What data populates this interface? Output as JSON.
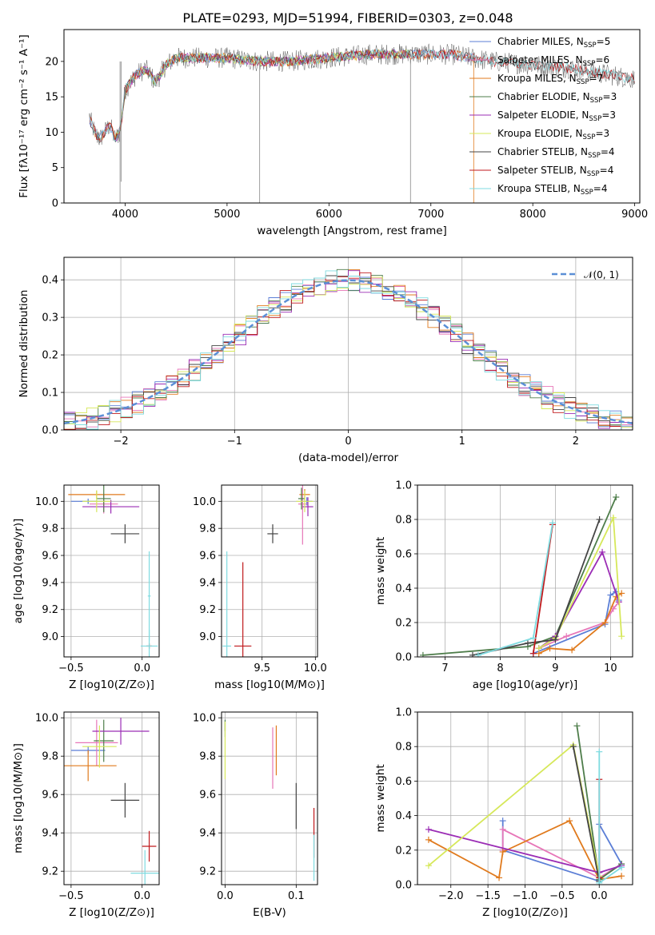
{
  "colors": {
    "series": [
      "#5b7ed6",
      "#e776b8",
      "#e07a1d",
      "#4e7d4a",
      "#9b2db5",
      "#d6e85a",
      "#444444",
      "#c0191c",
      "#7fdbe0"
    ],
    "gaussian": "#5b8fd6"
  },
  "chart_data": [
    {
      "id": "spectrum",
      "type": "line",
      "title": "PLATE=0293, MJD=51994, FIBERID=0303, z=0.048",
      "xlabel": "wavelength [Angstrom, rest frame]",
      "ylabel": "Flux [fλ10⁻¹⁷ erg cm⁻² s⁻¹ A⁻¹]",
      "xlim": [
        3400,
        9050
      ],
      "ylim": [
        0,
        24.5
      ],
      "xticks": [
        4000,
        5000,
        6000,
        7000,
        8000,
        9000
      ],
      "yticks": [
        0,
        5,
        10,
        15,
        20
      ],
      "grid": false,
      "legend_position": "right",
      "legend": [
        "Chabrier MILES, N_SSP=5",
        "Salpeter MILES, N_SSP=6",
        "Kroupa MILES, N_SSP=7",
        "Chabrier ELODIE, N_SSP=3",
        "Salpeter ELODIE, N_SSP=3",
        "Kroupa ELODIE, N_SSP=3",
        "Chabrier STELIB, N_SSP=4",
        "Salpeter STELIB, N_SSP=4",
        "Kroupa STELIB, N_SSP=4"
      ],
      "observed_envelope": {
        "x": [
          3650,
          3700,
          3750,
          3800,
          3850,
          3900,
          3950,
          4000,
          4100,
          4200,
          4300,
          4400,
          4500,
          4700,
          5000,
          5300,
          5600,
          6000,
          6400,
          6800,
          7200,
          7600,
          8000,
          8400,
          8800,
          9000
        ],
        "y": [
          12,
          10,
          9,
          10,
          11,
          9,
          10,
          16,
          18,
          19,
          17,
          19.5,
          20.5,
          20.5,
          20.5,
          20,
          20,
          20.5,
          21,
          21,
          21,
          20,
          19.5,
          19,
          18,
          17.5
        ]
      },
      "series_ranges": [
        {
          "name": "Chabrier MILES",
          "x": [
            3650,
            7420
          ]
        },
        {
          "name": "Salpeter MILES",
          "x": [
            3650,
            7420
          ]
        },
        {
          "name": "Kroupa MILES",
          "x": [
            3650,
            7420
          ]
        },
        {
          "name": "Chabrier ELODIE",
          "x": [
            3900,
            6800
          ]
        },
        {
          "name": "Salpeter ELODIE",
          "x": [
            3900,
            6800
          ]
        },
        {
          "name": "Kroupa ELODIE",
          "x": [
            3900,
            6800
          ]
        },
        {
          "name": "Chabrier STELIB",
          "x": [
            3650,
            9000
          ]
        },
        {
          "name": "Salpeter STELIB",
          "x": [
            3650,
            9000
          ]
        },
        {
          "name": "Kroupa STELIB",
          "x": [
            3650,
            9000
          ]
        }
      ]
    },
    {
      "id": "residuals",
      "type": "line",
      "xlabel": "(data-model)/error",
      "ylabel": "Normed distribution",
      "xlim": [
        -2.5,
        2.5
      ],
      "ylim": [
        0,
        0.46
      ],
      "xticks": [
        -2,
        -1,
        0,
        1,
        2
      ],
      "yticks": [
        0.0,
        0.1,
        0.2,
        0.3,
        0.4
      ],
      "grid": true,
      "legend": [
        "𝒩(0, 1)"
      ],
      "legend_position": "top-right",
      "bin_width": 0.1
    },
    {
      "id": "age-vs-Z",
      "type": "scatter",
      "xlabel": "Z [log10(Z/Z⊙)]",
      "ylabel": "age  [log10(age/yr)]",
      "xlim": [
        -0.55,
        0.12
      ],
      "ylim": [
        8.85,
        10.12
      ],
      "xticks": [
        -0.5,
        0.0
      ],
      "yticks": [
        9.0,
        9.2,
        9.4,
        9.6,
        9.8,
        10.0
      ],
      "grid": true,
      "points": [
        {
          "s": 0,
          "x": -0.38,
          "y": 10.0,
          "xerr": 0.12,
          "yerr": 0.02
        },
        {
          "s": 1,
          "x": -0.27,
          "y": 9.98,
          "xerr": 0.1,
          "yerr": 0.07
        },
        {
          "s": 2,
          "x": -0.32,
          "y": 10.05,
          "xerr": 0.2,
          "yerr": 0.03
        },
        {
          "s": 3,
          "x": -0.27,
          "y": 10.02,
          "xerr": 0.05,
          "yerr": 0.1
        },
        {
          "s": 4,
          "x": -0.22,
          "y": 9.96,
          "xerr": 0.2,
          "yerr": 0.05
        },
        {
          "s": 5,
          "x": -0.32,
          "y": 10.0,
          "xerr": 0.1,
          "yerr": 0.08
        },
        {
          "s": 6,
          "x": -0.12,
          "y": 9.76,
          "xerr": 0.1,
          "yerr": 0.07
        },
        {
          "s": 7,
          "x": 0.05,
          "y": 8.93,
          "xerr": 0.02,
          "yerr": 0.02
        },
        {
          "s": 8,
          "x": 0.05,
          "y": 8.93,
          "xerr": 0.06,
          "yerr": 0.12
        },
        {
          "s": 8,
          "x": 0.05,
          "y": 9.3,
          "xerr": 0.01,
          "yerr": 0.33
        }
      ]
    },
    {
      "id": "age-vs-mass",
      "type": "scatter",
      "xlabel": "mass [log10(M/M⊙)]",
      "ylabel": "",
      "xlim": [
        9.12,
        10.02
      ],
      "ylim": [
        8.85,
        10.12
      ],
      "xticks": [
        9.5,
        10.0
      ],
      "yticks": [
        9.0,
        9.2,
        9.4,
        9.6,
        9.8,
        10.0
      ],
      "grid": true,
      "points": [
        {
          "s": 0,
          "x": 9.92,
          "y": 10.0,
          "xerr": 0.05,
          "yerr": 0.03
        },
        {
          "s": 1,
          "x": 9.88,
          "y": 9.98,
          "xerr": 0.04,
          "yerr": 0.3
        },
        {
          "s": 2,
          "x": 9.9,
          "y": 10.05,
          "xerr": 0.05,
          "yerr": 0.04
        },
        {
          "s": 3,
          "x": 9.87,
          "y": 10.02,
          "xerr": 0.03,
          "yerr": 0.08
        },
        {
          "s": 4,
          "x": 9.93,
          "y": 9.96,
          "xerr": 0.05,
          "yerr": 0.07
        },
        {
          "s": 5,
          "x": 9.9,
          "y": 10.0,
          "xerr": 0.08,
          "yerr": 0.08
        },
        {
          "s": 6,
          "x": 9.6,
          "y": 9.76,
          "xerr": 0.05,
          "yerr": 0.07
        },
        {
          "s": 7,
          "x": 9.32,
          "y": 8.93,
          "xerr": 0.08,
          "yerr": 0.62
        },
        {
          "s": 8,
          "x": 9.17,
          "y": 8.93,
          "xerr": 0.04,
          "yerr": 0.7
        }
      ]
    },
    {
      "id": "mass-weight-vs-age",
      "type": "line",
      "xlabel": "age  [log10(age/yr)]",
      "ylabel": "mass weight",
      "xlim": [
        6.5,
        10.4
      ],
      "ylim": [
        0,
        1.0
      ],
      "xticks": [
        7,
        8,
        9,
        10
      ],
      "yticks": [
        0.0,
        0.2,
        0.4,
        0.6,
        0.8,
        1.0
      ],
      "grid": true,
      "series": [
        {
          "s": 0,
          "x": [
            8.6,
            9.9,
            10.0,
            10.1,
            10.15
          ],
          "y": [
            0.02,
            0.19,
            0.36,
            0.38,
            0.33
          ]
        },
        {
          "s": 1,
          "x": [
            8.7,
            9.2,
            9.9,
            10.05,
            10.15
          ],
          "y": [
            0.05,
            0.12,
            0.2,
            0.28,
            0.32
          ]
        },
        {
          "s": 2,
          "x": [
            8.7,
            8.9,
            9.3,
            9.9,
            10.1,
            10.2
          ],
          "y": [
            0.02,
            0.05,
            0.04,
            0.2,
            0.35,
            0.37
          ]
        },
        {
          "s": 3,
          "x": [
            6.6,
            8.5,
            9.0,
            10.1
          ],
          "y": [
            0.01,
            0.06,
            0.12,
            0.93
          ]
        },
        {
          "s": 4,
          "x": [
            8.7,
            9.0,
            9.85,
            10.15
          ],
          "y": [
            0.05,
            0.12,
            0.61,
            0.32
          ]
        },
        {
          "s": 5,
          "x": [
            8.7,
            9.0,
            10.05,
            10.2
          ],
          "y": [
            0.05,
            0.11,
            0.81,
            0.12
          ]
        },
        {
          "s": 6,
          "x": [
            7.5,
            8.5,
            9.0,
            9.8
          ],
          "y": [
            0.01,
            0.08,
            0.1,
            0.8
          ]
        },
        {
          "s": 7,
          "x": [
            8.6,
            8.95
          ],
          "y": [
            0.02,
            0.77
          ]
        },
        {
          "s": 8,
          "x": [
            7.6,
            8.6,
            8.95
          ],
          "y": [
            0.01,
            0.11,
            0.78
          ]
        }
      ]
    },
    {
      "id": "mass-vs-Z",
      "type": "scatter",
      "xlabel": "Z [log10(Z/Z⊙)]",
      "ylabel": "mass [log10(M/M⊙)]",
      "xlim": [
        -0.55,
        0.12
      ],
      "ylim": [
        9.13,
        10.03
      ],
      "xticks": [
        -0.5,
        0.0
      ],
      "yticks": [
        9.2,
        9.4,
        9.6,
        9.8,
        10.0
      ],
      "grid": true,
      "points": [
        {
          "s": 0,
          "x": -0.38,
          "y": 9.83,
          "xerr": 0.12,
          "yerr": 0.02
        },
        {
          "s": 1,
          "x": -0.32,
          "y": 9.87,
          "xerr": 0.15,
          "yerr": 0.12
        },
        {
          "s": 2,
          "x": -0.38,
          "y": 9.75,
          "xerr": 0.2,
          "yerr": 0.08
        },
        {
          "s": 3,
          "x": -0.27,
          "y": 9.88,
          "xerr": 0.07,
          "yerr": 0.11
        },
        {
          "s": 4,
          "x": -0.15,
          "y": 9.93,
          "xerr": 0.2,
          "yerr": 0.07
        },
        {
          "s": 5,
          "x": -0.3,
          "y": 9.85,
          "xerr": 0.12,
          "yerr": 0.11
        },
        {
          "s": 6,
          "x": -0.12,
          "y": 9.57,
          "xerr": 0.1,
          "yerr": 0.09
        },
        {
          "s": 7,
          "x": 0.05,
          "y": 9.33,
          "xerr": 0.05,
          "yerr": 0.08
        },
        {
          "s": 8,
          "x": 0.02,
          "y": 9.19,
          "xerr": 0.1,
          "yerr": 0.12
        }
      ]
    },
    {
      "id": "mass-vs-EBV",
      "type": "scatter",
      "xlabel": "E(B-V)",
      "ylabel": "",
      "xlim": [
        -0.005,
        0.13
      ],
      "ylim": [
        9.13,
        10.03
      ],
      "xticks": [
        0.0,
        0.1
      ],
      "yticks": [
        9.2,
        9.4,
        9.6,
        9.8,
        10.0
      ],
      "grid": true,
      "points": [
        {
          "s": 0,
          "x": 0.0,
          "y": 9.94,
          "xerr": 0.0,
          "yerr": 0.04
        },
        {
          "s": 1,
          "x": 0.067,
          "y": 9.79,
          "xerr": 0.0,
          "yerr": 0.16
        },
        {
          "s": 2,
          "x": 0.072,
          "y": 9.83,
          "xerr": 0.0,
          "yerr": 0.13
        },
        {
          "s": 3,
          "x": 0.0,
          "y": 9.96,
          "xerr": 0.0,
          "yerr": 0.03
        },
        {
          "s": 5,
          "x": 0.0,
          "y": 9.83,
          "xerr": 0.0,
          "yerr": 0.15
        },
        {
          "s": 6,
          "x": 0.1,
          "y": 9.54,
          "xerr": 0.0,
          "yerr": 0.12
        },
        {
          "s": 7,
          "x": 0.125,
          "y": 9.4,
          "xerr": 0.0,
          "yerr": 0.13
        },
        {
          "s": 8,
          "x": 0.125,
          "y": 9.27,
          "xerr": 0.0,
          "yerr": 0.12
        }
      ]
    },
    {
      "id": "mass-weight-vs-Z",
      "type": "line",
      "xlabel": "Z [log10(Z/Z⊙)]",
      "ylabel": "mass weight",
      "xlim": [
        -2.45,
        0.45
      ],
      "ylim": [
        0,
        1.0
      ],
      "xticks": [
        -2.0,
        -1.5,
        -1.0,
        -0.5,
        0.0
      ],
      "yticks": [
        0.0,
        0.2,
        0.4,
        0.6,
        0.8,
        1.0
      ],
      "grid": true,
      "series": [
        {
          "s": 0,
          "x": [
            -1.3,
            -1.3,
            0.0,
            0.0,
            0.3
          ],
          "y": [
            0.37,
            0.2,
            0.02,
            0.35,
            0.12
          ]
        },
        {
          "s": 1,
          "x": [
            -1.3,
            -1.3,
            0.0,
            0.3
          ],
          "y": [
            0.2,
            0.32,
            0.04,
            0.12
          ]
        },
        {
          "s": 2,
          "x": [
            -2.3,
            -1.35,
            -1.3,
            -0.4,
            0.0,
            0.3
          ],
          "y": [
            0.26,
            0.04,
            0.19,
            0.37,
            0.03,
            0.05
          ]
        },
        {
          "s": 3,
          "x": [
            -0.3,
            0.0,
            0.3
          ],
          "y": [
            0.92,
            0.03,
            0.12
          ]
        },
        {
          "s": 4,
          "x": [
            -2.3,
            0.0,
            0.3
          ],
          "y": [
            0.32,
            0.07,
            0.11
          ]
        },
        {
          "s": 5,
          "x": [
            -2.3,
            -0.35,
            0.0
          ],
          "y": [
            0.11,
            0.81,
            0.05
          ]
        },
        {
          "s": 6,
          "x": [
            -0.35,
            0.0
          ],
          "y": [
            0.8,
            0.02
          ]
        },
        {
          "s": 7,
          "x": [
            0.0,
            0.0
          ],
          "y": [
            0.61,
            0.04
          ]
        },
        {
          "s": 8,
          "x": [
            0.0,
            0.0,
            0.3
          ],
          "y": [
            0.77,
            0.01,
            0.1
          ]
        }
      ]
    }
  ]
}
